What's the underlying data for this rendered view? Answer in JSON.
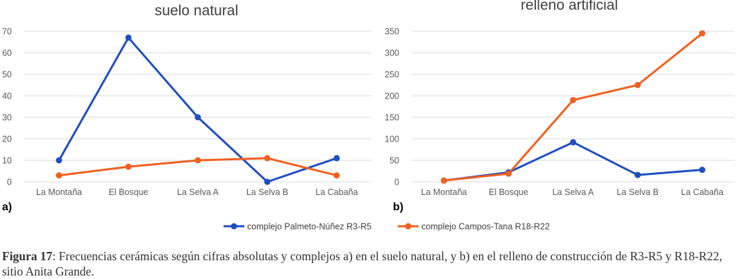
{
  "colors": {
    "series_1": "#1f4fbf",
    "series_2": "#f0601f",
    "grid": "#d9d9d9",
    "axis_text": "#595959"
  },
  "legend": {
    "placement": "bottom"
  },
  "chart_data": [
    {
      "type": "line",
      "panel_label": "a)",
      "title": "suelo natural",
      "xlabel": "",
      "ylabel": "",
      "categories": [
        "La Montaña",
        "El Bosque",
        "La Selva A",
        "La Selva B",
        "La Cabaña"
      ],
      "y_ticks": [
        0,
        10,
        20,
        30,
        40,
        50,
        60,
        70
      ],
      "ylim": [
        0,
        70
      ],
      "grid": true,
      "series": [
        {
          "name": "complejo Palmeto-Núñez R3-R5",
          "color": "#1f4fbf",
          "values": [
            10,
            67,
            30,
            0,
            11
          ]
        },
        {
          "name": "complejo Campos-Tana R18-R22",
          "color": "#f0601f",
          "values": [
            3,
            7,
            10,
            11,
            3
          ]
        }
      ]
    },
    {
      "type": "line",
      "panel_label": "b)",
      "title": "relleno artificial",
      "xlabel": "",
      "ylabel": "",
      "categories": [
        "La Montaña",
        "El Bosque",
        "La Selva A",
        "La Selva B",
        "La Cabaña"
      ],
      "y_ticks": [
        0,
        50,
        100,
        150,
        200,
        250,
        300,
        350
      ],
      "ylim": [
        0,
        350
      ],
      "grid": true,
      "series": [
        {
          "name": "complejo Palmeto-Núñez R3-R5",
          "color": "#1f4fbf",
          "values": [
            3,
            22,
            92,
            16,
            28
          ]
        },
        {
          "name": "complejo Campos-Tana R18-R22",
          "color": "#f0601f",
          "values": [
            3,
            19,
            190,
            225,
            345
          ]
        }
      ]
    }
  ],
  "caption": {
    "label": "Figura 17",
    "text": ": Frecuencias cerámicas según cifras absolutas y complejos a) en el suelo natural, y b) en el relleno de construcción de R3-R5 y R18-R22, sitio Anita Grande."
  }
}
